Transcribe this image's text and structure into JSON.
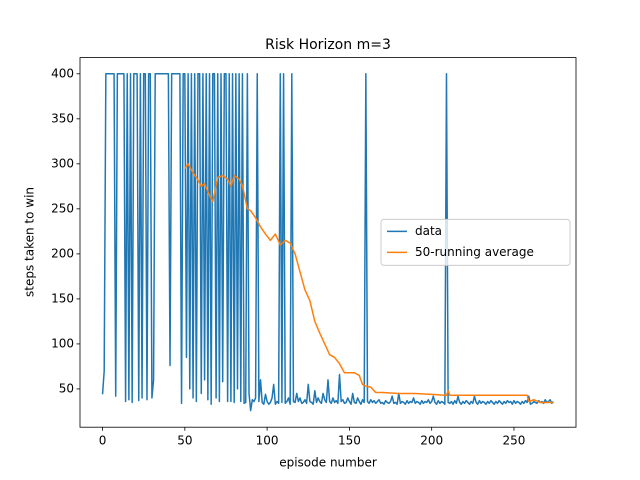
{
  "chart_data": {
    "type": "line",
    "title": "Risk Horizon m=3",
    "x_label": "episode number",
    "y_label": "steps taken to win",
    "xlim": [
      -13.7,
      287.7
    ],
    "ylim": [
      7.5,
      418
    ],
    "xticks": [
      0,
      50,
      100,
      150,
      200,
      250
    ],
    "yticks": [
      50,
      100,
      150,
      200,
      250,
      300,
      350,
      400
    ],
    "legend": "center right",
    "series": [
      {
        "name": "data",
        "color": "#1f77b4",
        "values": [
          44,
          70,
          400,
          400,
          400,
          400,
          400,
          400,
          42,
          400,
          400,
          400,
          400,
          400,
          36,
          400,
          38,
          400,
          35,
          400,
          400,
          400,
          37,
          400,
          40,
          400,
          400,
          38,
          400,
          400,
          40,
          60,
          400,
          400,
          400,
          400,
          400,
          400,
          400,
          400,
          400,
          76,
          400,
          400,
          400,
          400,
          400,
          400,
          34,
          400,
          400,
          85,
          400,
          50,
          400,
          40,
          400,
          36,
          400,
          400,
          45,
          400,
          60,
          400,
          38,
          400,
          33,
          400,
          400,
          40,
          400,
          36,
          400,
          58,
          400,
          400,
          36,
          400,
          36,
          400,
          35,
          400,
          50,
          400,
          36,
          400,
          34,
          35,
          400,
          45,
          26,
          38,
          36,
          40,
          400,
          36,
          60,
          35,
          33,
          44,
          36,
          33,
          35,
          40,
          55,
          33,
          36,
          34,
          400,
          35,
          400,
          34,
          36,
          40,
          33,
          400,
          36,
          35,
          45,
          36,
          40,
          34,
          35,
          38,
          34,
          55,
          36,
          35,
          33,
          48,
          35,
          40,
          36,
          34,
          45,
          38,
          35,
          60,
          36,
          34,
          40,
          35,
          37,
          34,
          66,
          36,
          38,
          34,
          35,
          40,
          36,
          33,
          45,
          35,
          34,
          40,
          36,
          33,
          38,
          35,
          400,
          36,
          34,
          38,
          35,
          37,
          34,
          36,
          38,
          34,
          35,
          33,
          37,
          35,
          34,
          36,
          42,
          34,
          35,
          33,
          45,
          34,
          36,
          35,
          33,
          37,
          34,
          36,
          35,
          40,
          34,
          36,
          35,
          33,
          37,
          34,
          36,
          35,
          38,
          34,
          36,
          42,
          35,
          33,
          37,
          34,
          36,
          35,
          33,
          400,
          35,
          34,
          36,
          33,
          37,
          34,
          42,
          35,
          33,
          36,
          34,
          37,
          35,
          33,
          36,
          34,
          42,
          35,
          33,
          37,
          34,
          36,
          35,
          33,
          36,
          34,
          37,
          35,
          33,
          36,
          34,
          37,
          35,
          33,
          36,
          34,
          37,
          35,
          36,
          33,
          37,
          34,
          36,
          35,
          33,
          36,
          34,
          37,
          35,
          42,
          33,
          34,
          36,
          35,
          34,
          37,
          35,
          36,
          34,
          38,
          35,
          36,
          38,
          34,
          36
        ]
      },
      {
        "name": "50-running average",
        "color": "#ff7f0e",
        "x": [
          50,
          52,
          55,
          58,
          60,
          62,
          65,
          67,
          70,
          73,
          76,
          78,
          80,
          83,
          85,
          88,
          90,
          93,
          96,
          99,
          102,
          105,
          108,
          111,
          114,
          117,
          120,
          123,
          126,
          129,
          132,
          135,
          138,
          141,
          144,
          147,
          150,
          153,
          156,
          158,
          160,
          163,
          166,
          170,
          180,
          190,
          200,
          208,
          209,
          210,
          211,
          220,
          240,
          258,
          259,
          262,
          266,
          274
        ],
        "values": [
          295,
          300,
          290,
          282,
          275,
          278,
          265,
          258,
          285,
          287,
          283,
          275,
          287,
          283,
          276,
          250,
          248,
          240,
          230,
          222,
          215,
          222,
          210,
          215,
          212,
          200,
          180,
          160,
          148,
          125,
          112,
          100,
          88,
          85,
          78,
          68,
          68,
          68,
          65,
          55,
          53,
          52,
          46,
          46,
          45,
          45,
          44,
          43,
          43,
          48,
          43,
          43,
          43,
          43,
          36,
          38,
          35,
          35
        ]
      }
    ]
  }
}
